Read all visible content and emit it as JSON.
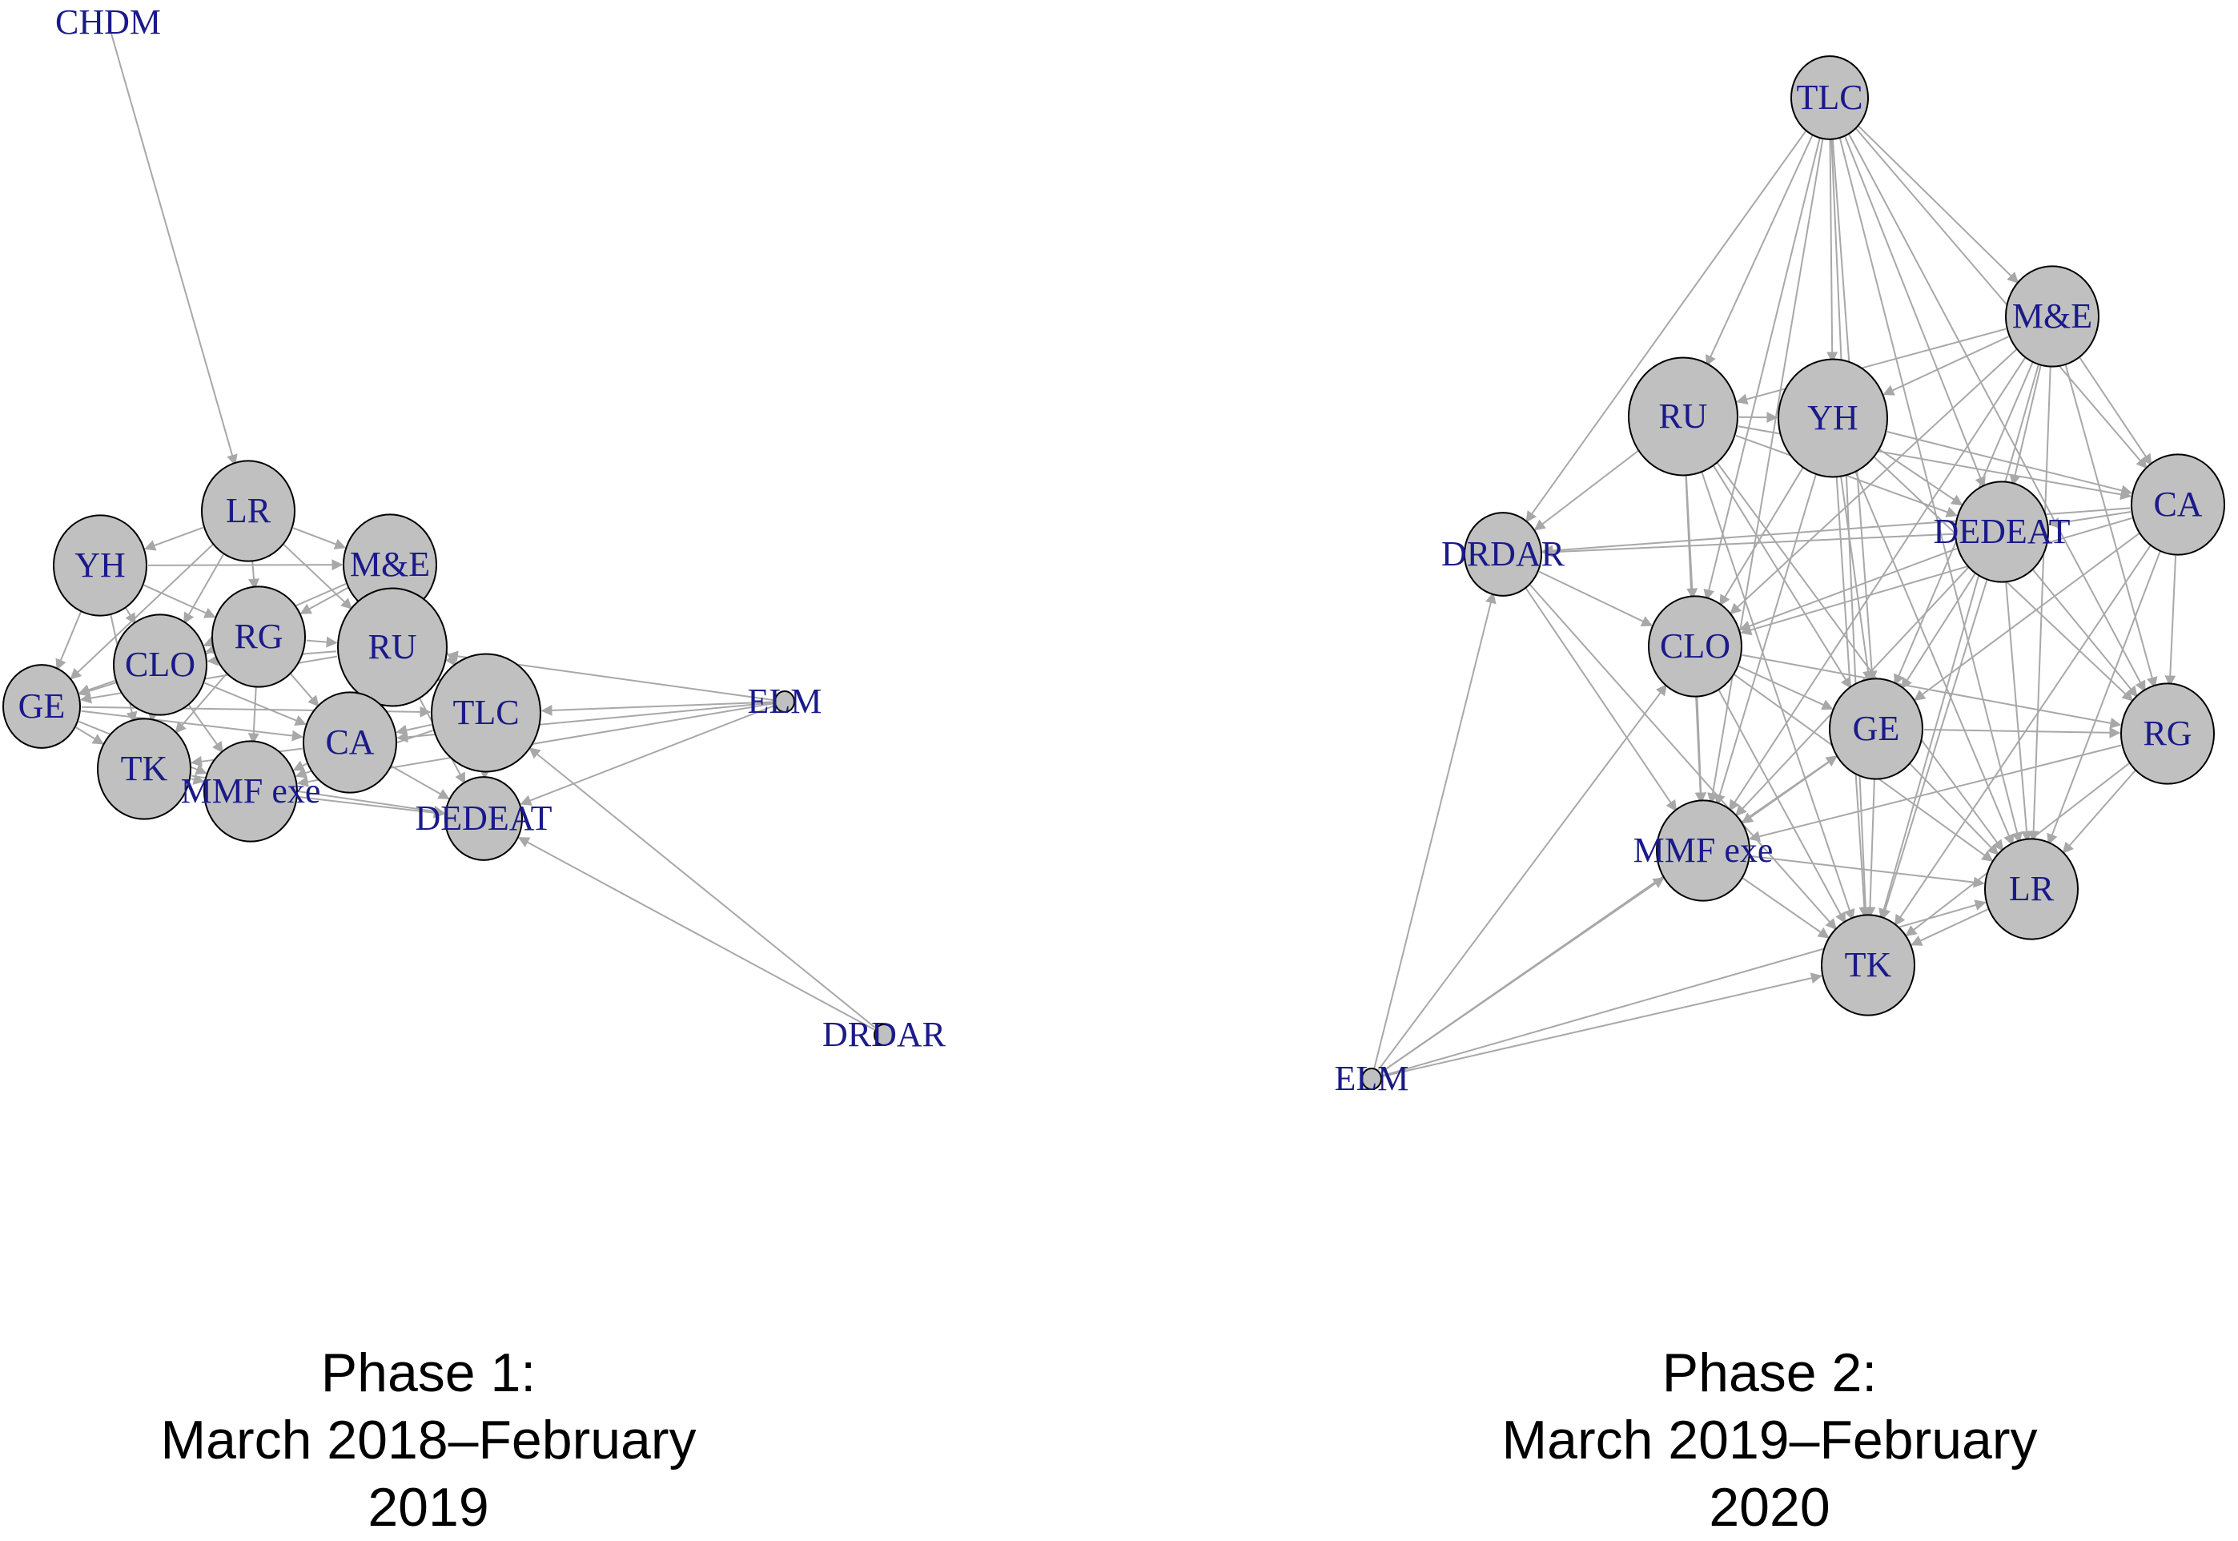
{
  "panels": [
    {
      "caption": [
        "Phase 1:",
        "March 2018–February",
        "2019"
      ],
      "nodes": [
        {
          "id": "CHDM",
          "label": "CHDM",
          "size": "none"
        },
        {
          "id": "LR",
          "label": "LR",
          "size": "medium"
        },
        {
          "id": "YH",
          "label": "YH",
          "size": "medium"
        },
        {
          "id": "M&E",
          "label": "M&E",
          "size": "medium"
        },
        {
          "id": "RG",
          "label": "RG",
          "size": "medium"
        },
        {
          "id": "RU",
          "label": "RU",
          "size": "large"
        },
        {
          "id": "CLO",
          "label": "CLO",
          "size": "medium"
        },
        {
          "id": "GE",
          "label": "GE",
          "size": "small"
        },
        {
          "id": "TLC",
          "label": "TLC",
          "size": "large"
        },
        {
          "id": "CA",
          "label": "CA",
          "size": "medium"
        },
        {
          "id": "TK",
          "label": "TK",
          "size": "medium"
        },
        {
          "id": "MMF exe",
          "label": "MMF exe",
          "size": "medium"
        },
        {
          "id": "DEDEAT",
          "label": "DEDEAT",
          "size": "small"
        },
        {
          "id": "ELM",
          "label": "ELM",
          "size": "tiny"
        },
        {
          "id": "DRDAR",
          "label": "DRDAR",
          "size": "tiny"
        }
      ],
      "edges": [
        [
          "CHDM",
          "LR"
        ],
        [
          "ELM",
          "TLC"
        ],
        [
          "ELM",
          "DEDEAT"
        ],
        [
          "ELM",
          "RU"
        ],
        [
          "ELM",
          "CA"
        ],
        [
          "ELM",
          "MMF exe"
        ],
        [
          "DRDAR",
          "DEDEAT"
        ],
        [
          "DRDAR",
          "TLC"
        ],
        [
          "LR",
          "YH"
        ],
        [
          "LR",
          "M&E"
        ],
        [
          "LR",
          "RG"
        ],
        [
          "LR",
          "CLO"
        ],
        [
          "LR",
          "GE"
        ],
        [
          "LR",
          "RU"
        ],
        [
          "YH",
          "CLO"
        ],
        [
          "YH",
          "GE"
        ],
        [
          "YH",
          "RG"
        ],
        [
          "YH",
          "TK"
        ],
        [
          "YH",
          "M&E"
        ],
        [
          "M&E",
          "RG"
        ],
        [
          "M&E",
          "RU"
        ],
        [
          "M&E",
          "CLO"
        ],
        [
          "M&E",
          "TLC"
        ],
        [
          "M&E",
          "CA"
        ],
        [
          "RG",
          "CLO"
        ],
        [
          "RG",
          "RU"
        ],
        [
          "RG",
          "GE"
        ],
        [
          "RG",
          "TK"
        ],
        [
          "RG",
          "MMF exe"
        ],
        [
          "RG",
          "CA"
        ],
        [
          "RU",
          "TLC"
        ],
        [
          "RU",
          "CA"
        ],
        [
          "RU",
          "CLO"
        ],
        [
          "RU",
          "GE"
        ],
        [
          "RU",
          "DEDEAT"
        ],
        [
          "CLO",
          "GE"
        ],
        [
          "CLO",
          "TK"
        ],
        [
          "CLO",
          "MMF exe"
        ],
        [
          "CLO",
          "CA"
        ],
        [
          "GE",
          "TK"
        ],
        [
          "GE",
          "MMF exe"
        ],
        [
          "GE",
          "CA"
        ],
        [
          "GE",
          "TLC"
        ],
        [
          "TLC",
          "CA"
        ],
        [
          "TLC",
          "DEDEAT"
        ],
        [
          "TLC",
          "MMF exe"
        ],
        [
          "CA",
          "MMF exe"
        ],
        [
          "CA",
          "DEDEAT"
        ],
        [
          "CA",
          "TK"
        ],
        [
          "TK",
          "MMF exe"
        ],
        [
          "TK",
          "DEDEAT"
        ],
        [
          "MMF exe",
          "DEDEAT"
        ]
      ]
    },
    {
      "caption": [
        "Phase 2:",
        "March 2019–February",
        "2020"
      ],
      "nodes": [
        {
          "id": "TLC",
          "label": "TLC",
          "size": "small"
        },
        {
          "id": "M&E",
          "label": "M&E",
          "size": "medium"
        },
        {
          "id": "RU",
          "label": "RU",
          "size": "large"
        },
        {
          "id": "YH",
          "label": "YH",
          "size": "large"
        },
        {
          "id": "CA",
          "label": "CA",
          "size": "medium"
        },
        {
          "id": "DEDEAT",
          "label": "DEDEAT",
          "size": "medium"
        },
        {
          "id": "DRDAR",
          "label": "DRDAR",
          "size": "small"
        },
        {
          "id": "CLO",
          "label": "CLO",
          "size": "medium"
        },
        {
          "id": "GE",
          "label": "GE",
          "size": "medium"
        },
        {
          "id": "RG",
          "label": "RG",
          "size": "medium"
        },
        {
          "id": "MMF exe",
          "label": "MMF exe",
          "size": "medium"
        },
        {
          "id": "LR",
          "label": "LR",
          "size": "medium"
        },
        {
          "id": "TK",
          "label": "TK",
          "size": "medium"
        },
        {
          "id": "ELM",
          "label": "ELM",
          "size": "tiny"
        }
      ],
      "edges": [
        [
          "TLC",
          "M&E"
        ],
        [
          "TLC",
          "RU"
        ],
        [
          "TLC",
          "YH"
        ],
        [
          "TLC",
          "CA"
        ],
        [
          "TLC",
          "DEDEAT"
        ],
        [
          "TLC",
          "DRDAR"
        ],
        [
          "TLC",
          "CLO"
        ],
        [
          "TLC",
          "GE"
        ],
        [
          "TLC",
          "RG"
        ],
        [
          "TLC",
          "MMF exe"
        ],
        [
          "TLC",
          "LR"
        ],
        [
          "TLC",
          "TK"
        ],
        [
          "M&E",
          "RU"
        ],
        [
          "M&E",
          "YH"
        ],
        [
          "M&E",
          "CA"
        ],
        [
          "M&E",
          "DEDEAT"
        ],
        [
          "M&E",
          "CLO"
        ],
        [
          "M&E",
          "GE"
        ],
        [
          "M&E",
          "RG"
        ],
        [
          "M&E",
          "MMF exe"
        ],
        [
          "M&E",
          "LR"
        ],
        [
          "M&E",
          "TK"
        ],
        [
          "RU",
          "YH"
        ],
        [
          "RU",
          "DEDEAT"
        ],
        [
          "RU",
          "DRDAR"
        ],
        [
          "RU",
          "CLO"
        ],
        [
          "RU",
          "GE"
        ],
        [
          "RU",
          "MMF exe"
        ],
        [
          "RU",
          "TK"
        ],
        [
          "RU",
          "LR"
        ],
        [
          "RU",
          "CA"
        ],
        [
          "YH",
          "CA"
        ],
        [
          "YH",
          "DEDEAT"
        ],
        [
          "YH",
          "CLO"
        ],
        [
          "YH",
          "GE"
        ],
        [
          "YH",
          "RG"
        ],
        [
          "YH",
          "MMF exe"
        ],
        [
          "YH",
          "LR"
        ],
        [
          "YH",
          "TK"
        ],
        [
          "CA",
          "DEDEAT"
        ],
        [
          "CA",
          "DRDAR"
        ],
        [
          "CA",
          "CLO"
        ],
        [
          "CA",
          "GE"
        ],
        [
          "CA",
          "RG"
        ],
        [
          "CA",
          "LR"
        ],
        [
          "CA",
          "TK"
        ],
        [
          "DEDEAT",
          "DRDAR"
        ],
        [
          "DEDEAT",
          "CLO"
        ],
        [
          "DEDEAT",
          "GE"
        ],
        [
          "DEDEAT",
          "RG"
        ],
        [
          "DEDEAT",
          "MMF exe"
        ],
        [
          "DEDEAT",
          "LR"
        ],
        [
          "DEDEAT",
          "TK"
        ],
        [
          "DRDAR",
          "CLO"
        ],
        [
          "DRDAR",
          "MMF exe"
        ],
        [
          "DRDAR",
          "TK"
        ],
        [
          "CLO",
          "GE"
        ],
        [
          "CLO",
          "RG"
        ],
        [
          "CLO",
          "MMF exe"
        ],
        [
          "CLO",
          "TK"
        ],
        [
          "CLO",
          "LR"
        ],
        [
          "GE",
          "RG"
        ],
        [
          "GE",
          "MMF exe"
        ],
        [
          "GE",
          "LR"
        ],
        [
          "GE",
          "TK"
        ],
        [
          "RG",
          "LR"
        ],
        [
          "RG",
          "TK"
        ],
        [
          "RG",
          "MMF exe"
        ],
        [
          "MMF exe",
          "TK"
        ],
        [
          "MMF exe",
          "LR"
        ],
        [
          "LR",
          "TK"
        ],
        [
          "ELM",
          "DRDAR"
        ],
        [
          "ELM",
          "CLO"
        ],
        [
          "ELM",
          "MMF exe"
        ],
        [
          "ELM",
          "TK"
        ],
        [
          "ELM",
          "GE"
        ],
        [
          "ELM",
          "LR"
        ]
      ]
    }
  ],
  "colors": {
    "node_fill": "#c0c0c0",
    "node_stroke": "#000000",
    "label": "#1a1a8a",
    "edge": "#a8a8a8"
  }
}
